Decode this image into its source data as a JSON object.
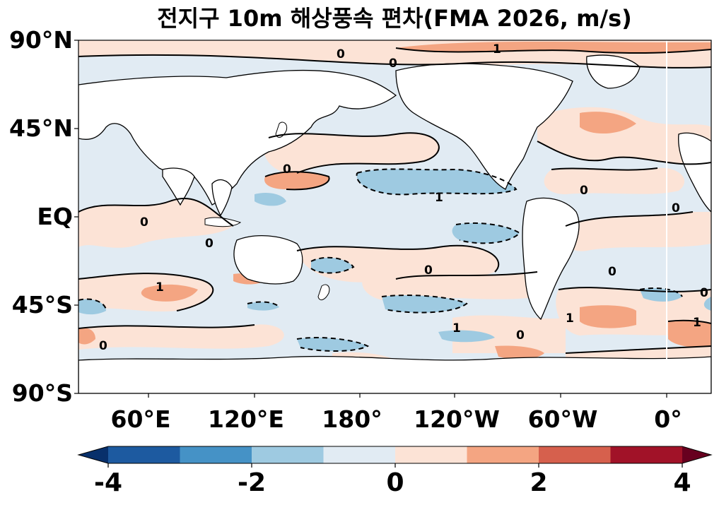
{
  "title": "전지구 10m 해상풍속 편차(FMA 2026, m/s)",
  "map": {
    "projection": "PlateCarree",
    "central_longitude": 180,
    "extent_longitude": [
      30,
      390
    ],
    "extent_latitude": [
      -90,
      90
    ],
    "variable": "10m wind speed anomaly",
    "units": "m/s",
    "contour_label": "0",
    "contour_label_secondary": "1",
    "land_color": "#ffffff",
    "coastline_color": "#000000"
  },
  "axes": {
    "y_ticks": [
      {
        "lat": 90,
        "label": "90°N"
      },
      {
        "lat": 45,
        "label": "45°N"
      },
      {
        "lat": 0,
        "label": "EQ"
      },
      {
        "lat": -45,
        "label": "45°S"
      },
      {
        "lat": -90,
        "label": "90°S"
      }
    ],
    "x_ticks": [
      {
        "lon": 60,
        "label": "60°E"
      },
      {
        "lon": 120,
        "label": "120°E"
      },
      {
        "lon": 180,
        "label": "180°"
      },
      {
        "lon": 240,
        "label": "120°W"
      },
      {
        "lon": 300,
        "label": "60°W"
      },
      {
        "lon": 360,
        "label": "0°"
      }
    ]
  },
  "colorbar": {
    "min": -4,
    "max": 4,
    "extend": "both",
    "colors": [
      "#08306b",
      "#1d5aa0",
      "#4592c6",
      "#9ecae1",
      "#e1ebf3",
      "#fce3d6",
      "#f4a582",
      "#d6604d",
      "#a11228",
      "#67001f"
    ],
    "bins": [
      {
        "from": -4,
        "to": -3,
        "color": "#1d5aa0"
      },
      {
        "from": -3,
        "to": -2,
        "color": "#4592c6"
      },
      {
        "from": -2,
        "to": -1,
        "color": "#9ecae1"
      },
      {
        "from": -1,
        "to": 0,
        "color": "#e1ebf3"
      },
      {
        "from": 0,
        "to": 1,
        "color": "#fce3d6"
      },
      {
        "from": 1,
        "to": 2,
        "color": "#f4a582"
      },
      {
        "from": 2,
        "to": 3,
        "color": "#d6604d"
      },
      {
        "from": 3,
        "to": 4,
        "color": "#a11228"
      }
    ],
    "under_color": "#08306b",
    "over_color": "#67001f",
    "ticks": [
      {
        "value": -4,
        "label": "-4"
      },
      {
        "value": -2,
        "label": "-2"
      },
      {
        "value": 0,
        "label": "0"
      },
      {
        "value": 2,
        "label": "2"
      },
      {
        "value": 4,
        "label": "4"
      }
    ]
  }
}
